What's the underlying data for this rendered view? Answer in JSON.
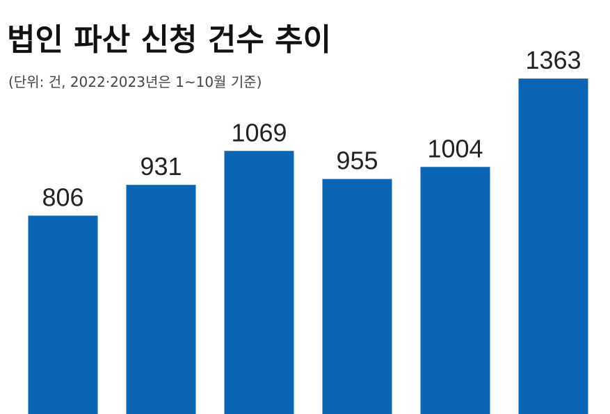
{
  "chart_data": {
    "type": "bar",
    "title": "법인 파산 신청 건수 추이",
    "subtitle": "(단위: 건, 2022·2023년은 1~10월 기준)",
    "categories": [
      null,
      null,
      null,
      null,
      null,
      null
    ],
    "values": [
      806,
      931,
      1069,
      955,
      1004,
      1363
    ],
    "color": "#0b65b5",
    "ylim": [
      0,
      1400
    ]
  }
}
